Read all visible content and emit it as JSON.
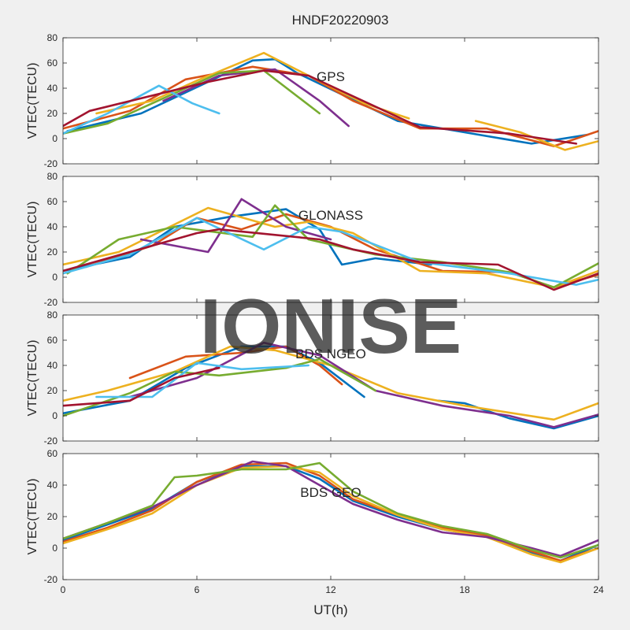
{
  "title": "HNDF20220903",
  "watermark": "IONISE",
  "colors": {
    "background": "#f0f0f0",
    "axes_bg": "#ffffff",
    "axes_edge": "#262626",
    "watermark": "#dcdcdc",
    "series": [
      "#0072BD",
      "#D95319",
      "#EDB120",
      "#7E2F8E",
      "#77AC30",
      "#4DBEEE",
      "#A2142F"
    ]
  },
  "chart_data": [
    {
      "type": "line",
      "annotation": "GPS",
      "ylabel": "VTEC(TECU)",
      "xlabel": "",
      "xlim": [
        0,
        24
      ],
      "ylim": [
        -20,
        80
      ],
      "xticks": [
        "0",
        "6",
        "12",
        "18",
        "24"
      ],
      "yticks": [
        "-20",
        "0",
        "20",
        "40",
        "60",
        "80"
      ],
      "series": [
        {
          "color": "#0072BD",
          "x": [
            0.2,
            3.5,
            6.5,
            8.5,
            9.5,
            10.5,
            12.5,
            15.0,
            18.0,
            21.0,
            23.5
          ],
          "y": [
            6,
            20,
            45,
            62,
            63,
            52,
            35,
            14,
            5,
            -4,
            3
          ]
        },
        {
          "color": "#D95319",
          "x": [
            0,
            3,
            5.5,
            8.5,
            11,
            13,
            16,
            19,
            22,
            24
          ],
          "y": [
            8,
            22,
            47,
            57,
            50,
            30,
            8,
            8,
            -6,
            6
          ]
        },
        {
          "color": "#EDB120",
          "x": [
            1.5,
            4,
            6,
            9.0,
            11,
            13.5,
            15.5
          ],
          "y": [
            20,
            30,
            46,
            68,
            50,
            28,
            16
          ]
        },
        {
          "color": "#EDB120",
          "x": [
            18.5,
            20.5,
            22.5,
            24
          ],
          "y": [
            14,
            5,
            -9,
            -2
          ]
        },
        {
          "color": "#7E2F8E",
          "x": [
            4.5,
            7,
            9.5,
            11.5,
            12.8
          ],
          "y": [
            30,
            50,
            55,
            30,
            10
          ]
        },
        {
          "color": "#77AC30",
          "x": [
            0,
            2,
            4.5,
            7,
            9,
            11.5
          ],
          "y": [
            4,
            12,
            32,
            52,
            54,
            20
          ]
        },
        {
          "color": "#4DBEEE",
          "x": [
            0,
            2,
            4.3,
            5.8,
            7
          ],
          "y": [
            4,
            20,
            42,
            28,
            20
          ]
        },
        {
          "color": "#A2142F",
          "x": [
            0,
            1.2,
            6.5,
            9,
            11,
            16,
            20,
            23
          ],
          "y": [
            10,
            22,
            45,
            54,
            50,
            9,
            4,
            -4
          ]
        }
      ]
    },
    {
      "type": "line",
      "annotation": "GLONASS",
      "ylabel": "VTEC(TECU)",
      "xlabel": "",
      "xlim": [
        0,
        24
      ],
      "ylim": [
        -20,
        80
      ],
      "xticks": [
        "0",
        "6",
        "12",
        "18",
        "24"
      ],
      "yticks": [
        "-20",
        "0",
        "20",
        "40",
        "60",
        "80"
      ],
      "series": [
        {
          "color": "#0072BD",
          "x": [
            0,
            3,
            5,
            7.5,
            10,
            11.5,
            12.5,
            14,
            16.5
          ],
          "y": [
            5,
            16,
            40,
            48,
            54,
            38,
            10,
            15,
            10
          ]
        },
        {
          "color": "#D95319",
          "x": [
            1,
            4,
            6,
            8,
            10,
            12,
            14,
            17,
            20,
            22,
            24
          ],
          "y": [
            8,
            25,
            47,
            38,
            50,
            40,
            22,
            5,
            4,
            -8,
            2
          ]
        },
        {
          "color": "#EDB120",
          "x": [
            0,
            2.5,
            6.5,
            9.5,
            11,
            13,
            16,
            19,
            22,
            24
          ],
          "y": [
            10,
            20,
            55,
            40,
            44,
            35,
            5,
            3,
            -8,
            5
          ]
        },
        {
          "color": "#7E2F8E",
          "x": [
            3.5,
            6.5,
            8,
            10,
            12
          ],
          "y": [
            30,
            20,
            62,
            40,
            30
          ]
        },
        {
          "color": "#77AC30",
          "x": [
            0.2,
            2.5,
            5,
            8.5,
            9.5,
            11,
            14,
            17,
            20,
            22,
            24
          ],
          "y": [
            3,
            30,
            40,
            32,
            57,
            30,
            18,
            12,
            4,
            -8,
            11
          ]
        },
        {
          "color": "#4DBEEE",
          "x": [
            0,
            3,
            6,
            9,
            11,
            12.5,
            16,
            20,
            23,
            24
          ],
          "y": [
            3,
            18,
            47,
            22,
            40,
            36,
            12,
            3,
            -6,
            -2
          ]
        },
        {
          "color": "#A2142F",
          "x": [
            0,
            3,
            6,
            7,
            11.5,
            13,
            16,
            19.5,
            22,
            24
          ],
          "y": [
            5,
            20,
            35,
            38,
            30,
            22,
            12,
            10,
            -10,
            3
          ]
        }
      ]
    },
    {
      "type": "line",
      "annotation": "BDS NGEO",
      "ylabel": "VTEC(TECU)",
      "xlabel": "",
      "xlim": [
        0,
        24
      ],
      "ylim": [
        -20,
        80
      ],
      "xticks": [
        "0",
        "6",
        "12",
        "18",
        "24"
      ],
      "yticks": [
        "-20",
        "0",
        "20",
        "40",
        "60",
        "80"
      ],
      "series": [
        {
          "color": "#0072BD",
          "x": [
            0,
            3,
            5.5,
            8,
            10,
            11.5,
            13.5
          ],
          "y": [
            2,
            12,
            38,
            55,
            55,
            42,
            15
          ]
        },
        {
          "color": "#0072BD",
          "x": [
            16.8,
            18,
            20,
            22,
            24
          ],
          "y": [
            12,
            10,
            -2,
            -10,
            0
          ]
        },
        {
          "color": "#D95319",
          "x": [
            3,
            5.5,
            8,
            10,
            11.5,
            12.5
          ],
          "y": [
            30,
            47,
            50,
            55,
            40,
            25
          ]
        },
        {
          "color": "#EDB120",
          "x": [
            0,
            2,
            5,
            7.5,
            9.5,
            12,
            15,
            18,
            22,
            24
          ],
          "y": [
            12,
            20,
            35,
            55,
            52,
            40,
            18,
            8,
            -3,
            10
          ]
        },
        {
          "color": "#7E2F8E",
          "x": [
            3,
            6,
            9,
            11.5,
            14,
            17,
            20,
            22,
            24
          ],
          "y": [
            15,
            30,
            58,
            48,
            20,
            8,
            0,
            -9,
            1
          ]
        },
        {
          "color": "#77AC30",
          "x": [
            0,
            3,
            5,
            7,
            10,
            11.5,
            14
          ],
          "y": [
            0,
            18,
            35,
            32,
            38,
            45,
            20
          ]
        },
        {
          "color": "#4DBEEE",
          "x": [
            1.5,
            4,
            6,
            8,
            11
          ],
          "y": [
            15,
            15,
            42,
            37,
            40
          ]
        },
        {
          "color": "#A2142F",
          "x": [
            0,
            3,
            5,
            7
          ],
          "y": [
            8,
            12,
            30,
            38
          ]
        }
      ]
    },
    {
      "type": "line",
      "annotation": "BDS GEO",
      "ylabel": "VTEC(TECU)",
      "xlabel": "UT(h)",
      "xlim": [
        0,
        24
      ],
      "ylim": [
        -20,
        60
      ],
      "xticks": [
        "0",
        "6",
        "12",
        "18",
        "24"
      ],
      "yticks": [
        "-20",
        "0",
        "20",
        "40",
        "60"
      ],
      "series": [
        {
          "color": "#0072BD",
          "x": [
            0,
            2,
            4,
            6,
            8,
            10,
            11.5,
            13,
            15,
            17,
            19,
            21,
            22.3,
            24
          ],
          "y": [
            5,
            15,
            25,
            42,
            52,
            52,
            44,
            30,
            20,
            12,
            7,
            -3,
            -8,
            2
          ]
        },
        {
          "color": "#D95319",
          "x": [
            0,
            2,
            4,
            6,
            8,
            10,
            11.5,
            13,
            15,
            17,
            19,
            21,
            22.3,
            24
          ],
          "y": [
            4,
            13,
            24,
            42,
            53,
            54,
            46,
            31,
            21,
            13,
            8,
            -2,
            -8,
            0
          ]
        },
        {
          "color": "#EDB120",
          "x": [
            0,
            2,
            4,
            6,
            8,
            10,
            11.5,
            13,
            15,
            17,
            19,
            21,
            22.3,
            24
          ],
          "y": [
            3,
            12,
            22,
            40,
            51,
            52,
            48,
            33,
            21,
            12,
            7,
            -4,
            -9,
            0
          ]
        },
        {
          "color": "#7E2F8E",
          "x": [
            0,
            2,
            4,
            6,
            8.5,
            10,
            11.5,
            13,
            15,
            17,
            19,
            21,
            22.3,
            24
          ],
          "y": [
            6,
            16,
            26,
            40,
            55,
            52,
            40,
            28,
            18,
            10,
            7,
            0,
            -5,
            5
          ]
        },
        {
          "color": "#77AC30",
          "x": [
            0,
            2,
            4,
            5,
            6,
            8,
            10,
            11.5,
            13,
            15,
            17,
            19,
            21,
            22.3,
            24
          ],
          "y": [
            6,
            16,
            27,
            45,
            46,
            50,
            50,
            54,
            36,
            22,
            14,
            9,
            -1,
            -6,
            2
          ]
        }
      ]
    }
  ]
}
